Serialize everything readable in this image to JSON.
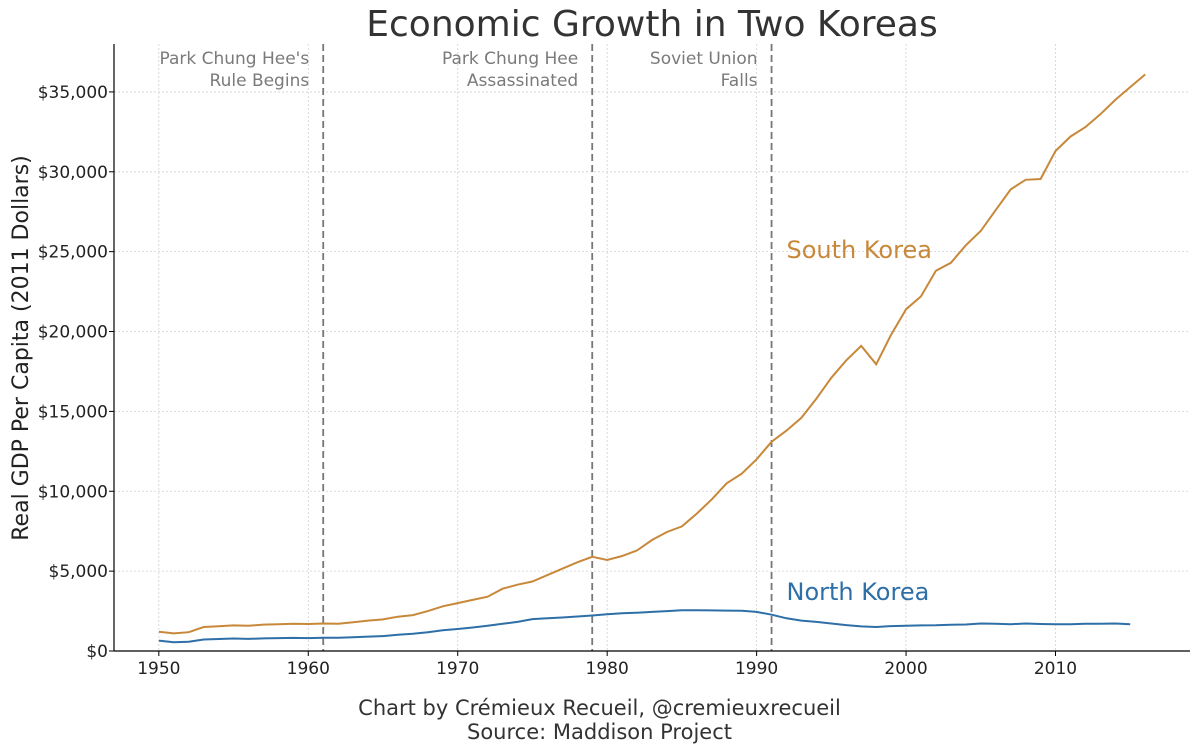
{
  "chart_data": {
    "type": "line",
    "title": "Economic Growth in Two Koreas",
    "xlabel": "",
    "ylabel": "Real GDP Per Capita (2011 Dollars)",
    "xlim": [
      1947,
      2019
    ],
    "ylim": [
      0,
      38000
    ],
    "x_ticks": [
      1950,
      1960,
      1970,
      1980,
      1990,
      2000,
      2010
    ],
    "y_ticks": [
      0,
      5000,
      10000,
      15000,
      20000,
      25000,
      30000,
      35000
    ],
    "y_tick_labels": [
      "$0",
      "$5,000",
      "$10,000",
      "$15,000",
      "$20,000",
      "$25,000",
      "$30,000",
      "$35,000"
    ],
    "grid": true,
    "series": [
      {
        "name": "South Korea",
        "color": "#c8883a",
        "x": [
          1950,
          1951,
          1952,
          1953,
          1954,
          1955,
          1956,
          1957,
          1958,
          1959,
          1960,
          1961,
          1962,
          1963,
          1964,
          1965,
          1966,
          1967,
          1968,
          1969,
          1970,
          1971,
          1972,
          1973,
          1974,
          1975,
          1976,
          1977,
          1978,
          1979,
          1980,
          1981,
          1982,
          1983,
          1984,
          1985,
          1986,
          1987,
          1988,
          1989,
          1990,
          1991,
          1992,
          1993,
          1994,
          1995,
          1996,
          1997,
          1998,
          1999,
          2000,
          2001,
          2002,
          2003,
          2004,
          2005,
          2006,
          2007,
          2008,
          2009,
          2010,
          2011,
          2012,
          2013,
          2014,
          2015,
          2016
        ],
        "y": [
          1200,
          1100,
          1180,
          1500,
          1550,
          1600,
          1580,
          1650,
          1680,
          1700,
          1690,
          1720,
          1700,
          1800,
          1900,
          1980,
          2150,
          2250,
          2500,
          2800,
          3000,
          3200,
          3400,
          3900,
          4150,
          4350,
          4750,
          5150,
          5550,
          5900,
          5700,
          5950,
          6300,
          6950,
          7450,
          7800,
          8600,
          9500,
          10500,
          11100,
          12000,
          13100,
          13800,
          14600,
          15800,
          17100,
          18200,
          19100,
          17950,
          19800,
          21400,
          22200,
          23800,
          24300,
          25400,
          26300,
          27600,
          28900,
          29500,
          29550,
          31300,
          32200,
          32800,
          33600,
          34500,
          35300,
          36100
        ]
      },
      {
        "name": "North Korea",
        "color": "#2e6fa7",
        "x": [
          1950,
          1951,
          1952,
          1953,
          1954,
          1955,
          1956,
          1957,
          1958,
          1959,
          1960,
          1961,
          1962,
          1963,
          1964,
          1965,
          1966,
          1967,
          1968,
          1969,
          1970,
          1971,
          1972,
          1973,
          1974,
          1975,
          1976,
          1977,
          1978,
          1979,
          1980,
          1981,
          1982,
          1983,
          1984,
          1985,
          1986,
          1987,
          1988,
          1989,
          1990,
          1991,
          1992,
          1993,
          1994,
          1995,
          1996,
          1997,
          1998,
          1999,
          2000,
          2001,
          2002,
          2003,
          2004,
          2005,
          2006,
          2007,
          2008,
          2009,
          2010,
          2011,
          2012,
          2013,
          2014,
          2015
        ],
        "y": [
          650,
          550,
          580,
          720,
          750,
          780,
          760,
          790,
          810,
          820,
          810,
          830,
          830,
          860,
          900,
          930,
          1020,
          1080,
          1180,
          1300,
          1380,
          1470,
          1580,
          1700,
          1820,
          2000,
          2050,
          2100,
          2160,
          2220,
          2300,
          2360,
          2400,
          2450,
          2500,
          2550,
          2550,
          2540,
          2530,
          2520,
          2450,
          2270,
          2050,
          1900,
          1820,
          1720,
          1620,
          1540,
          1500,
          1560,
          1580,
          1600,
          1610,
          1640,
          1660,
          1720,
          1700,
          1680,
          1720,
          1690,
          1680,
          1680,
          1700,
          1700,
          1720,
          1680
        ]
      }
    ],
    "annotations": [
      {
        "x": 1961,
        "lines": [
          "Park Chung Hee's",
          "Rule Begins"
        ]
      },
      {
        "x": 1979,
        "lines": [
          "Park Chung Hee",
          "Assassinated"
        ]
      },
      {
        "x": 1991,
        "lines": [
          "Soviet Union",
          "Falls"
        ]
      }
    ],
    "series_labels": [
      {
        "text": "South Korea",
        "x": 1992,
        "y": 24600
      },
      {
        "text": "North Korea",
        "x": 1992,
        "y": 3200
      }
    ]
  },
  "footer": {
    "credit": "Chart by Crémieux Recueil, @cremieuxrecueil",
    "source": "Source: Maddison Project"
  }
}
